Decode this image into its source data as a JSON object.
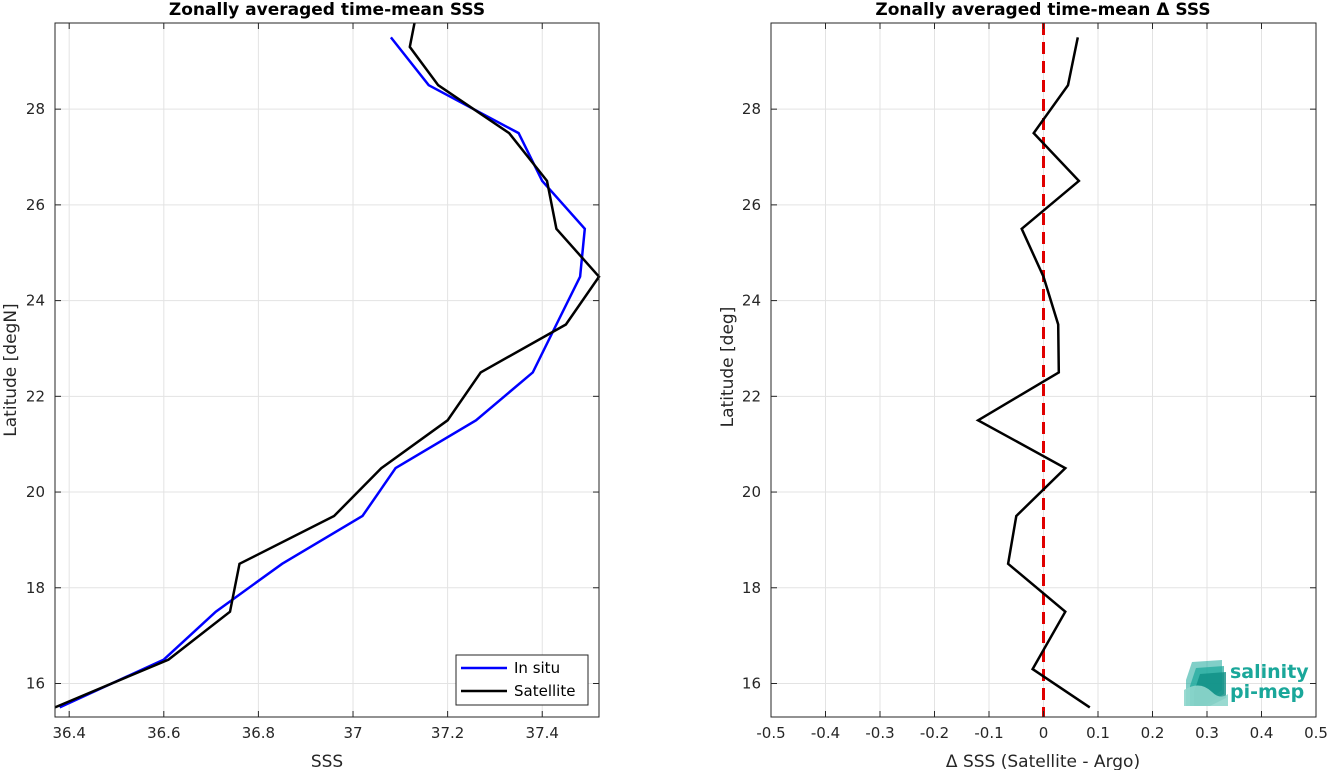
{
  "chart_data": [
    {
      "type": "line",
      "title": "Zonally averaged time-mean SSS",
      "xlabel": "SSS",
      "ylabel": "Latitude [degN]",
      "xlim": [
        36.37,
        37.52
      ],
      "ylim": [
        15.3,
        29.8
      ],
      "xticks": [
        36.4,
        36.6,
        36.8,
        37.0,
        37.2,
        37.4
      ],
      "xtick_labels": [
        "36.4",
        "36.6",
        "36.8",
        "37",
        "37.2",
        "37.4"
      ],
      "yticks": [
        16,
        18,
        20,
        22,
        24,
        26,
        28
      ],
      "ytick_labels": [
        "16",
        "18",
        "20",
        "22",
        "24",
        "26",
        "28"
      ],
      "grid": true,
      "legend": "bottom-right",
      "series": [
        {
          "name": "In situ",
          "color": "#0000ff",
          "points": [
            [
              36.38,
              15.5
            ],
            [
              36.6,
              16.5
            ],
            [
              36.71,
              17.5
            ],
            [
              36.85,
              18.5
            ],
            [
              37.02,
              19.5
            ],
            [
              37.09,
              20.5
            ],
            [
              37.26,
              21.5
            ],
            [
              37.38,
              22.5
            ],
            [
              37.43,
              23.5
            ],
            [
              37.48,
              24.5
            ],
            [
              37.49,
              25.5
            ],
            [
              37.4,
              26.5
            ],
            [
              37.35,
              27.5
            ],
            [
              37.16,
              28.5
            ],
            [
              37.08,
              29.5
            ]
          ]
        },
        {
          "name": "Satellite",
          "color": "#000000",
          "points": [
            [
              36.37,
              15.5
            ],
            [
              36.61,
              16.5
            ],
            [
              36.74,
              17.5
            ],
            [
              36.76,
              18.5
            ],
            [
              36.96,
              19.5
            ],
            [
              37.06,
              20.5
            ],
            [
              37.2,
              21.5
            ],
            [
              37.27,
              22.5
            ],
            [
              37.45,
              23.5
            ],
            [
              37.52,
              24.5
            ],
            [
              37.43,
              25.5
            ],
            [
              37.41,
              26.5
            ],
            [
              37.33,
              27.5
            ],
            [
              37.18,
              28.5
            ],
            [
              37.12,
              29.3
            ],
            [
              37.13,
              29.8
            ]
          ]
        }
      ]
    },
    {
      "type": "line",
      "title": "Zonally averaged time-mean Δ SSS",
      "xlabel": "Δ SSS (Satellite - Argo)",
      "ylabel": "Latitude [deg]",
      "xlim": [
        -0.5,
        0.5
      ],
      "ylim": [
        15.3,
        29.8
      ],
      "xticks": [
        -0.5,
        -0.4,
        -0.3,
        -0.2,
        -0.1,
        0,
        0.1,
        0.2,
        0.3,
        0.4,
        0.5
      ],
      "xtick_labels": [
        "-0.5",
        "-0.4",
        "-0.3",
        "-0.2",
        "-0.1",
        "0",
        "0.1",
        "0.2",
        "0.3",
        "0.4",
        "0.5"
      ],
      "yticks": [
        16,
        18,
        20,
        22,
        24,
        26,
        28
      ],
      "ytick_labels": [
        "16",
        "18",
        "20",
        "22",
        "24",
        "26",
        "28"
      ],
      "grid": true,
      "reference_line": {
        "x": 0,
        "color": "#e00000",
        "style": "dashed"
      },
      "series": [
        {
          "color": "#000000",
          "points": [
            [
              0.085,
              15.5
            ],
            [
              -0.02,
              16.3
            ],
            [
              0.04,
              17.5
            ],
            [
              -0.065,
              18.5
            ],
            [
              -0.05,
              19.5
            ],
            [
              0.04,
              20.5
            ],
            [
              -0.12,
              21.5
            ],
            [
              0.028,
              22.5
            ],
            [
              0.027,
              23.5
            ],
            [
              0,
              24.5
            ],
            [
              -0.04,
              25.5
            ],
            [
              0.065,
              26.5
            ],
            [
              -0.018,
              27.5
            ],
            [
              0.045,
              28.5
            ],
            [
              0.063,
              29.5
            ]
          ]
        }
      ]
    }
  ],
  "logo": {
    "line1": "salinity",
    "line2": "pi-mep",
    "color": "#1aa79a"
  }
}
